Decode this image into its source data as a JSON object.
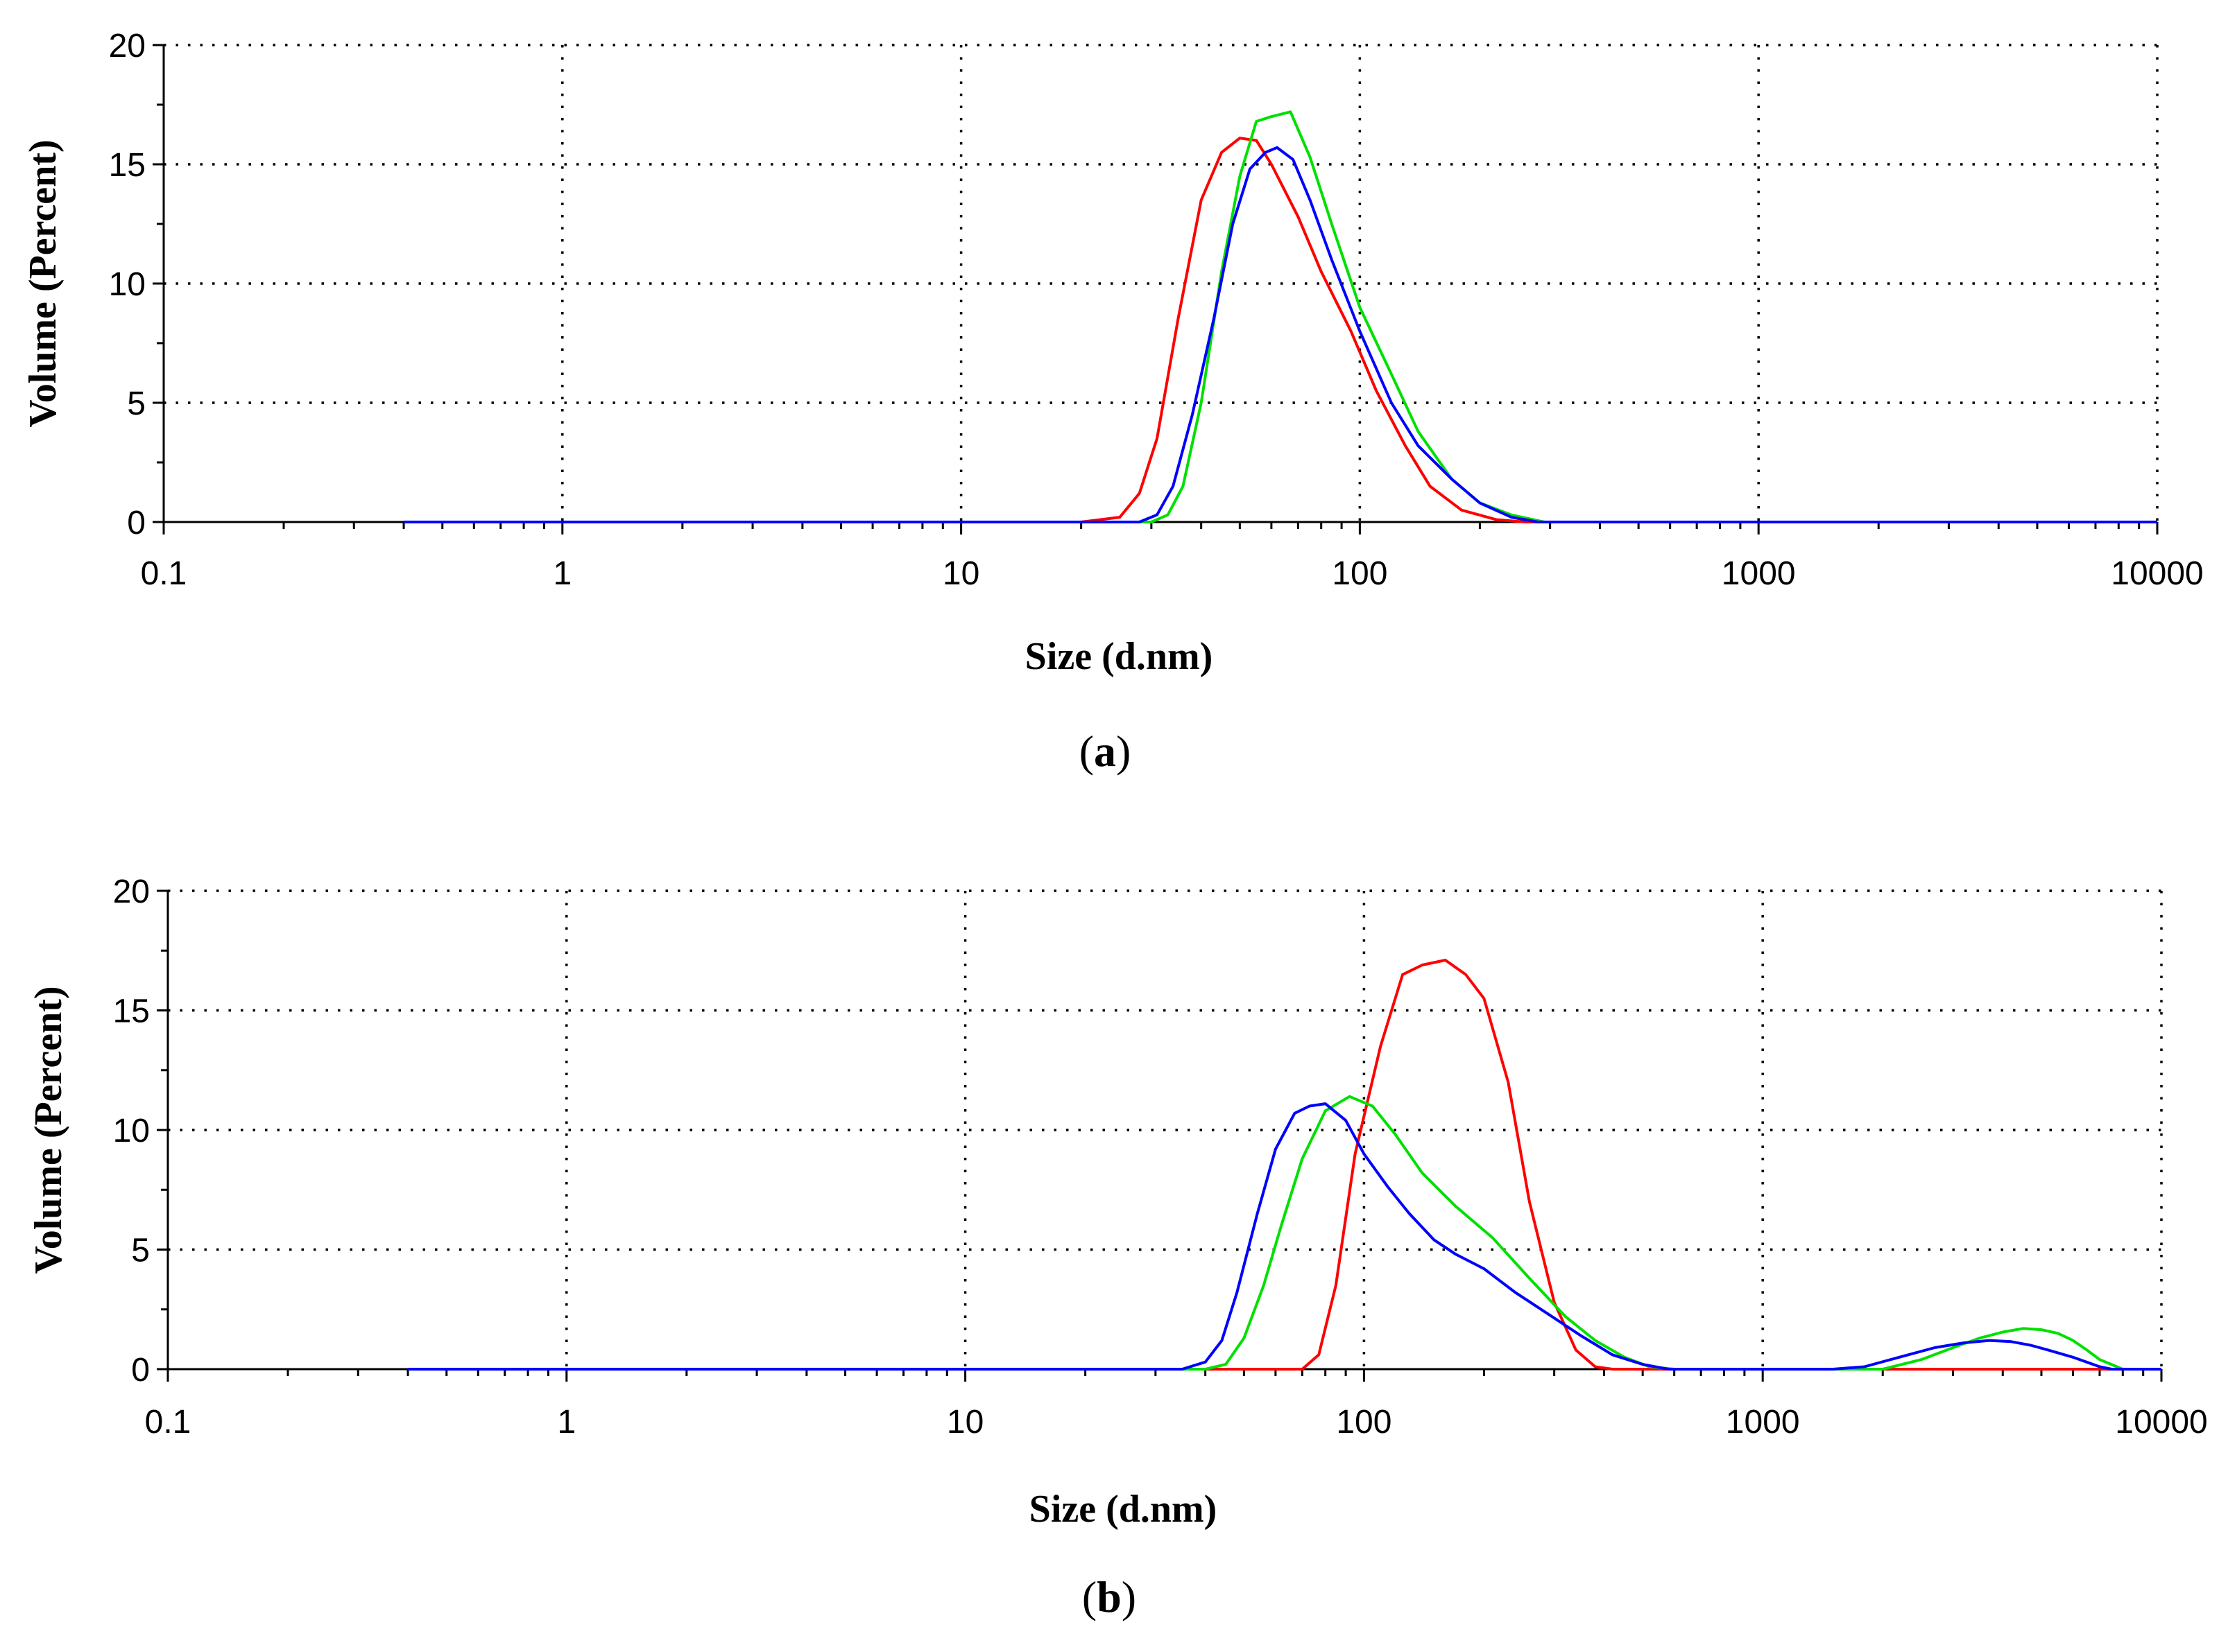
{
  "chart_data": [
    {
      "type": "line",
      "panel_label": "a",
      "xlabel": "Size (d.nm)",
      "ylabel": "Volume (Percent)",
      "x_scale": "log",
      "xlim": [
        0.1,
        10000
      ],
      "ylim": [
        0,
        20
      ],
      "x_ticks": [
        "0.1",
        "1",
        "10",
        "100",
        "1000",
        "10000"
      ],
      "y_ticks": [
        "0",
        "5",
        "10",
        "15",
        "20"
      ],
      "grid": true,
      "legend": "none",
      "series": [
        {
          "color": "#ff0000",
          "x": [
            0.4,
            20,
            25,
            28,
            31,
            35,
            40,
            45,
            50,
            55,
            60,
            70,
            80,
            95,
            110,
            130,
            150,
            180,
            220,
            260,
            300,
            1000,
            10000
          ],
          "y": [
            0,
            0,
            0.2,
            1.2,
            3.5,
            8.5,
            13.5,
            15.5,
            16.1,
            16.0,
            15.0,
            12.8,
            10.5,
            8.0,
            5.5,
            3.2,
            1.5,
            0.5,
            0.1,
            0,
            0,
            0,
            0
          ]
        },
        {
          "color": "#00e000",
          "x": [
            0.4,
            20,
            30,
            33,
            36,
            40,
            45,
            50,
            55,
            60,
            67,
            75,
            85,
            100,
            120,
            140,
            170,
            200,
            240,
            290,
            350,
            1000,
            10000
          ],
          "y": [
            0,
            0,
            0,
            0.3,
            1.5,
            5.0,
            10.5,
            14.5,
            16.8,
            17.0,
            17.2,
            15.3,
            12.5,
            9.0,
            6.2,
            3.8,
            1.8,
            0.8,
            0.3,
            0,
            0,
            0,
            0
          ]
        },
        {
          "color": "#0000ff",
          "x": [
            0.4,
            20,
            28,
            31,
            34,
            38,
            43,
            48,
            53,
            58,
            62,
            68,
            75,
            85,
            100,
            120,
            140,
            170,
            200,
            240,
            280,
            1000,
            10000
          ],
          "y": [
            0,
            0,
            0,
            0.3,
            1.5,
            4.5,
            8.5,
            12.5,
            14.8,
            15.5,
            15.7,
            15.2,
            13.5,
            11.0,
            8.0,
            5.0,
            3.2,
            1.8,
            0.8,
            0.2,
            0,
            0,
            0
          ]
        }
      ]
    },
    {
      "type": "line",
      "panel_label": "b",
      "xlabel": "Size (d.nm)",
      "ylabel": "Volume (Percent)",
      "x_scale": "log",
      "xlim": [
        0.1,
        10000
      ],
      "ylim": [
        0,
        20
      ],
      "x_ticks": [
        "0.1",
        "1",
        "10",
        "100",
        "1000",
        "10000"
      ],
      "y_ticks": [
        "0",
        "5",
        "10",
        "15",
        "20"
      ],
      "grid": true,
      "legend": "none",
      "series": [
        {
          "color": "#ff0000",
          "x": [
            0.4,
            60,
            70,
            77,
            85,
            95,
            110,
            125,
            140,
            160,
            180,
            200,
            230,
            260,
            300,
            340,
            380,
            420,
            1000,
            10000
          ],
          "y": [
            0,
            0,
            0,
            0.6,
            3.5,
            9.0,
            13.5,
            16.5,
            16.9,
            17.1,
            16.5,
            15.5,
            12.0,
            7.0,
            2.8,
            0.8,
            0.1,
            0,
            0,
            0
          ]
        },
        {
          "color": "#00e000",
          "x": [
            0.4,
            40,
            45,
            50,
            56,
            62,
            70,
            80,
            92,
            105,
            120,
            140,
            170,
            210,
            260,
            320,
            380,
            450,
            520,
            600,
            1500,
            2000,
            2500,
            3000,
            3500,
            4000,
            4500,
            5000,
            5500,
            6000,
            6500,
            7000,
            8000,
            10000
          ],
          "y": [
            0,
            0,
            0.2,
            1.3,
            3.5,
            6.0,
            8.8,
            10.8,
            11.4,
            11.0,
            9.8,
            8.2,
            6.8,
            5.5,
            3.8,
            2.2,
            1.2,
            0.5,
            0.1,
            0,
            0,
            0,
            0.4,
            0.9,
            1.3,
            1.55,
            1.7,
            1.65,
            1.5,
            1.2,
            0.8,
            0.4,
            0,
            0
          ]
        },
        {
          "color": "#0000ff",
          "x": [
            0.4,
            35,
            40,
            44,
            48,
            54,
            60,
            67,
            73,
            80,
            90,
            100,
            115,
            130,
            150,
            170,
            200,
            240,
            290,
            350,
            420,
            500,
            580,
            650,
            1500,
            1800,
            2200,
            2700,
            3200,
            3700,
            4200,
            4700,
            5200,
            6000,
            7000,
            7500,
            10000
          ],
          "y": [
            0,
            0,
            0.3,
            1.2,
            3.2,
            6.5,
            9.2,
            10.7,
            11.0,
            11.1,
            10.4,
            9.0,
            7.6,
            6.5,
            5.4,
            4.8,
            4.2,
            3.2,
            2.3,
            1.4,
            0.6,
            0.2,
            0,
            0,
            0,
            0.1,
            0.5,
            0.9,
            1.1,
            1.2,
            1.15,
            1.0,
            0.8,
            0.5,
            0.1,
            0,
            0
          ]
        }
      ]
    }
  ]
}
